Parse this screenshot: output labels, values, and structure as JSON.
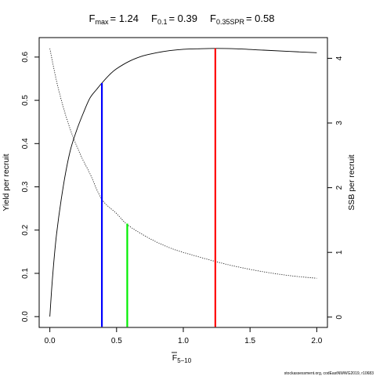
{
  "chart_data": {
    "type": "line",
    "title_parts": [
      {
        "main": "F",
        "sub": "max",
        "value": "= 1.24"
      },
      {
        "main": "F",
        "sub": "0.1",
        "value": "= 0.39"
      },
      {
        "main": "F",
        "sub": "0.35SPR",
        "value": "= 0.58"
      }
    ],
    "xlabel": {
      "main": "F",
      "sub": "5−10"
    },
    "ylabel_left": "Yield per recruit",
    "ylabel_right": "SSB per recruit",
    "xlim": [
      -0.08,
      2.08
    ],
    "ylim_left": [
      -0.025,
      0.645
    ],
    "ylim_right": [
      -0.16,
      4.32
    ],
    "x_ticks": [
      0,
      0.5,
      1,
      1.5,
      2
    ],
    "x_tick_labels": [
      "0.0",
      "0.5",
      "1.0",
      "1.5",
      "2.0"
    ],
    "y_left_ticks": [
      0,
      0.1,
      0.2,
      0.3,
      0.4,
      0.5,
      0.6
    ],
    "y_left_tick_labels": [
      "0.0",
      "0.1",
      "0.2",
      "0.3",
      "0.4",
      "0.5",
      "0.6"
    ],
    "y_right_ticks": [
      0,
      1,
      2,
      3,
      4
    ],
    "y_right_tick_labels": [
      "0",
      "1",
      "2",
      "3",
      "4"
    ],
    "yield_curve": {
      "x": [
        0,
        0.02,
        0.05,
        0.1,
        0.15,
        0.2,
        0.25,
        0.3,
        0.35,
        0.39,
        0.45,
        0.5,
        0.6,
        0.7,
        0.8,
        0.9,
        1.0,
        1.1,
        1.24,
        1.4,
        1.6,
        1.8,
        2.0
      ],
      "y": [
        0,
        0.09,
        0.19,
        0.3,
        0.38,
        0.43,
        0.47,
        0.505,
        0.525,
        0.54,
        0.56,
        0.573,
        0.591,
        0.603,
        0.61,
        0.615,
        0.618,
        0.619,
        0.62,
        0.619,
        0.616,
        0.613,
        0.61
      ]
    },
    "ssb_curve": {
      "x": [
        0,
        0.05,
        0.1,
        0.15,
        0.2,
        0.25,
        0.3,
        0.39,
        0.5,
        0.58,
        0.7,
        0.8,
        0.9,
        1.0,
        1.24,
        1.4,
        1.6,
        1.8,
        2.0
      ],
      "y": [
        4.15,
        3.65,
        3.25,
        2.92,
        2.65,
        2.42,
        2.22,
        1.82,
        1.6,
        1.43,
        1.27,
        1.16,
        1.07,
        1.0,
        0.86,
        0.78,
        0.7,
        0.64,
        0.6
      ]
    },
    "reference_lines": [
      {
        "x": 0.39,
        "y": 0.54,
        "color": "#0000ff"
      },
      {
        "x": 0.58,
        "y": 0.215,
        "color": "#00ee00"
      },
      {
        "x": 1.24,
        "y": 0.62,
        "color": "#ff0000"
      }
    ],
    "grid": false,
    "footer": "stockassessment.org, codEastNWWG2019, r10683"
  }
}
